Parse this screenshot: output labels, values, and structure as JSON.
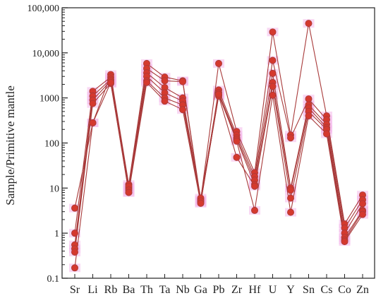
{
  "chart_data": {
    "type": "line",
    "ylabel": "Sample/Primitive mantle",
    "y_scale": "log",
    "ylim": [
      0.1,
      100000
    ],
    "y_ticks": [
      {
        "value": 0.1,
        "label": "0.1"
      },
      {
        "value": 1,
        "label": "1"
      },
      {
        "value": 10,
        "label": "10"
      },
      {
        "value": 100,
        "label": "100"
      },
      {
        "value": 1000,
        "label": "1000"
      },
      {
        "value": 10000,
        "label": "10,000"
      },
      {
        "value": 100000,
        "label": "100,000"
      }
    ],
    "categories": [
      "Sr",
      "Li",
      "Rb",
      "Ba",
      "Th",
      "Ta",
      "Nb",
      "Ga",
      "Pb",
      "Zr",
      "Hf",
      "U",
      "Y",
      "Sn",
      "Cs",
      "Co",
      "Zn"
    ],
    "series": [
      {
        "values": [
          3.6,
          280,
          3300,
          12,
          5800,
          2900,
          2400,
          5.5,
          5800,
          180,
          22,
          29000,
          150,
          45000,
          400,
          1.6,
          7
        ]
      },
      {
        "values": [
          1.0,
          1400,
          2900,
          10,
          4500,
          2400,
          2300,
          5.0,
          1500,
          150,
          18,
          6800,
          130,
          950,
          330,
          1.3,
          5.5
        ]
      },
      {
        "values": [
          0.55,
          1100,
          2600,
          8,
          3600,
          1700,
          1000,
          6.0,
          1300,
          130,
          15,
          3500,
          10,
          700,
          260,
          1.0,
          4.5
        ]
      },
      {
        "values": [
          0.45,
          900,
          2400,
          11,
          3000,
          1300,
          850,
          4.8,
          1150,
          120,
          12,
          2200,
          9,
          600,
          220,
          0.8,
          3.2
        ]
      },
      {
        "values": [
          0.38,
          750,
          2100,
          9,
          2400,
          1000,
          700,
          5.2,
          1100,
          48,
          11,
          1800,
          6,
          500,
          200,
          0.7,
          3.0
        ]
      },
      {
        "values": [
          0.17,
          280,
          2200,
          8,
          2200,
          850,
          550,
          4.6,
          1200,
          110,
          3.2,
          1150,
          2.9,
          400,
          160,
          0.65,
          2.6
        ]
      }
    ],
    "styles": {
      "line_color": "#a83a3a",
      "marker_color": "#d4392e",
      "marker_edge": "#a83a3a",
      "halo_color": "#f4b8ea"
    }
  }
}
